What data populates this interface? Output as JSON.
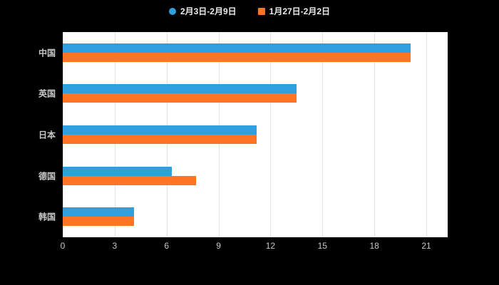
{
  "chart_data": {
    "type": "bar",
    "orientation": "horizontal",
    "title": "",
    "categories": [
      "中国",
      "英国",
      "日本",
      "德国",
      "韩国"
    ],
    "series": [
      {
        "name": "2月3日-2月9日",
        "color": "#2f9fdf",
        "marker": "circle",
        "values": [
          20.1,
          13.5,
          11.2,
          6.3,
          4.1
        ]
      },
      {
        "name": "1月27日-2月2日",
        "color": "#ff7524",
        "marker": "square",
        "values": [
          20.1,
          13.5,
          11.2,
          7.7,
          4.1
        ]
      }
    ],
    "xlim": [
      0,
      21
    ],
    "x_ticks": [
      0,
      3,
      6,
      9,
      12,
      15,
      18,
      21
    ],
    "grid": true,
    "legend_position": "top",
    "xlabel": "",
    "ylabel": ""
  },
  "colors": {
    "page_bg": "#000000",
    "plot_bg": "#ffffff",
    "gridline": "#e3e3e3",
    "axis_text": "#c8c8c8",
    "legend_text": "#eaeaea"
  }
}
